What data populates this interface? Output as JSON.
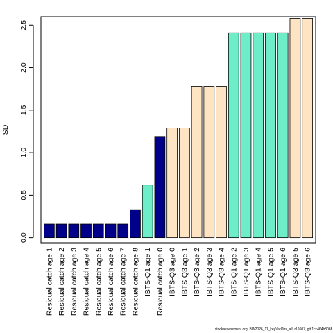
{
  "chart_data": {
    "type": "bar",
    "ylabel": "SD",
    "ylim": [
      -0.06,
      2.6
    ],
    "yticks": [
      0.0,
      0.5,
      1.0,
      1.5,
      2.0,
      2.5
    ],
    "ytick_labels": [
      "0.0",
      "0.5",
      "1.0",
      "1.5",
      "2.0",
      "2.5"
    ],
    "bar_border_color": "#000000",
    "categories": [
      "Residual catch age 1",
      "Residual catch age 2",
      "Residual catch age 3",
      "Residual catch age 4",
      "Residual catch age 5",
      "Residual catch age 6",
      "Residual catch age 7",
      "Residual catch age 8",
      "IBTS-Q1 age 1",
      "Residual catch age 0",
      "IBTS-Q3 age 0",
      "IBTS-Q3 age 1",
      "IBTS-Q3 age 2",
      "IBTS-Q3 age 3",
      "IBTS-Q3 age 4",
      "IBTS-Q1 age 2",
      "IBTS-Q1 age 3",
      "IBTS-Q1 age 4",
      "IBTS-Q1 age 5",
      "IBTS-Q1 age 6",
      "IBTS-Q3 age 5",
      "IBTS-Q3 age 6"
    ],
    "values": [
      0.16,
      0.16,
      0.16,
      0.16,
      0.16,
      0.16,
      0.16,
      0.33,
      0.62,
      1.19,
      1.29,
      1.29,
      1.78,
      1.78,
      1.78,
      2.41,
      2.41,
      2.41,
      2.41,
      2.41,
      2.58,
      2.58
    ],
    "colors": [
      "#00008B",
      "#00008B",
      "#00008B",
      "#00008B",
      "#00008B",
      "#00008B",
      "#00008B",
      "#00008B",
      "#6EEEC8",
      "#00008B",
      "#FFE4C4",
      "#FFE4C4",
      "#FFE4C4",
      "#FFE4C4",
      "#FFE4C4",
      "#6EEEC8",
      "#6EEEC8",
      "#6EEEC8",
      "#6EEEC8",
      "#6EEEC8",
      "#FFE4C4",
      "#FFE4C4"
    ]
  },
  "footer_text": "stockassessment.org, BW2026_11_keyVarObs_all, r19607, git:1cc464b806f"
}
